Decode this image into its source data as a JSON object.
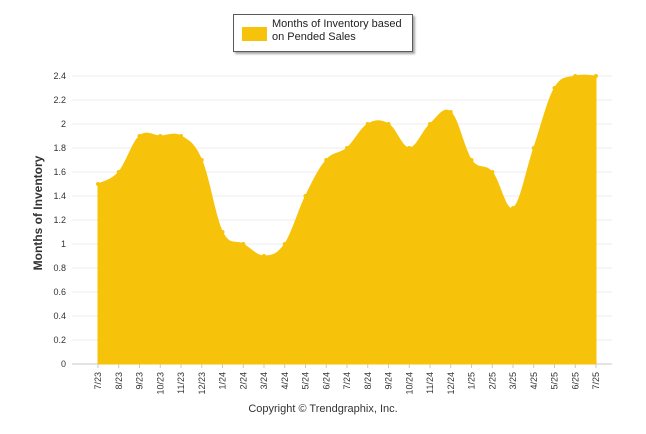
{
  "chart_data": {
    "type": "area",
    "categories": [
      "7/23",
      "8/23",
      "9/23",
      "10/23",
      "11/23",
      "12/23",
      "1/24",
      "2/24",
      "3/24",
      "4/24",
      "5/24",
      "6/24",
      "7/24",
      "8/24",
      "9/24",
      "10/24",
      "11/24",
      "12/24",
      "1/25",
      "2/25",
      "3/25",
      "4/25",
      "5/25",
      "6/25",
      "7/25"
    ],
    "series": [
      {
        "name": "Months of Inventory based on Pended Sales",
        "color": "#F7C30A",
        "values": [
          1.5,
          1.6,
          1.9,
          1.9,
          1.9,
          1.7,
          1.1,
          1.0,
          0.9,
          1.0,
          1.4,
          1.7,
          1.8,
          2.0,
          2.0,
          1.8,
          2.0,
          2.1,
          1.7,
          1.6,
          1.3,
          1.8,
          2.3,
          2.4,
          2.4
        ]
      }
    ],
    "ylabel": "Months of Inventory",
    "xlabel": "",
    "ylim": [
      0,
      2.4
    ],
    "yticks": [
      "0",
      "0.2",
      "0.4",
      "0.6",
      "0.8",
      "1",
      "1.2",
      "1.4",
      "1.6",
      "1.8",
      "2",
      "2.2",
      "2.4"
    ],
    "grid": true,
    "legend_position": "top-center"
  },
  "legend": {
    "label": "Months of Inventory based on Pended Sales"
  },
  "footer": {
    "copyright": "Copyright © Trendgraphix, Inc."
  }
}
